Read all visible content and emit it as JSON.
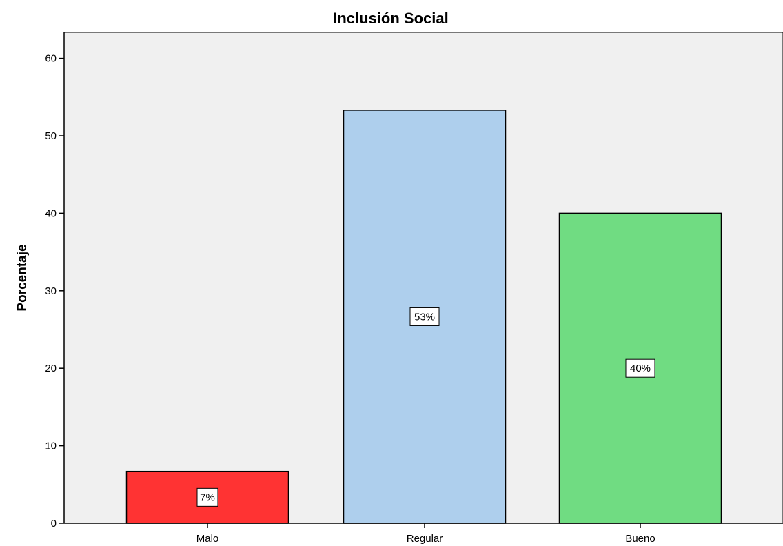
{
  "chart_data": {
    "type": "bar",
    "title": "Inclusión Social",
    "xlabel": "",
    "ylabel": "Porcentaje",
    "categories": [
      "Malo",
      "Regular",
      "Bueno"
    ],
    "values": [
      6.7,
      53.3,
      40.0
    ],
    "data_labels": [
      "7%",
      "53%",
      "40%"
    ],
    "colors": [
      "#ff3333",
      "#aecfed",
      "#70dc82"
    ],
    "ylim": [
      0,
      63
    ],
    "yticks": [
      0,
      10,
      20,
      30,
      40,
      50,
      60
    ],
    "yticklabels": [
      "0",
      "10",
      "20",
      "30",
      "40",
      "50",
      "60"
    ],
    "grid": false,
    "plot_background": "#f0f0f0"
  }
}
